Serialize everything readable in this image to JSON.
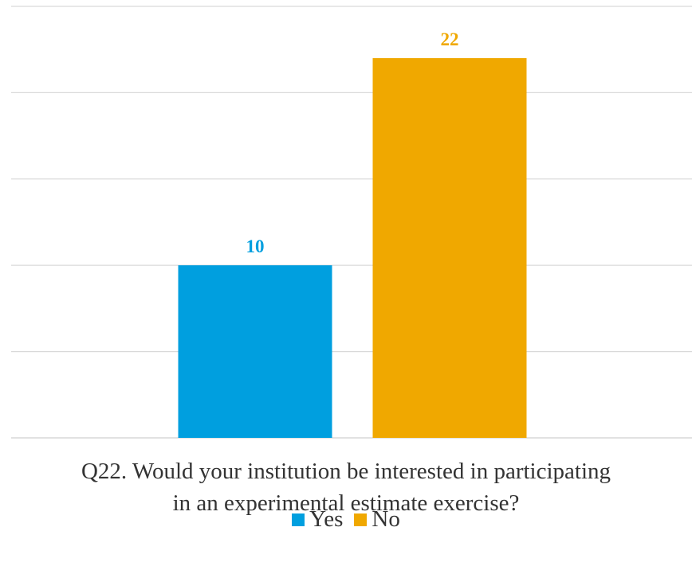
{
  "chart_data": {
    "type": "bar",
    "categories": [
      ""
    ],
    "series": [
      {
        "name": "Yes",
        "values": [
          10
        ],
        "color": "#009FDF"
      },
      {
        "name": "No",
        "values": [
          22
        ],
        "color": "#F0A800"
      }
    ],
    "title": "Q22. Would your institution be interested in participating in an experimental estimate exercise?",
    "xlabel": "",
    "ylabel": "",
    "ylim": [
      0,
      25
    ],
    "grid": true,
    "legend_position": "bottom",
    "data_labels": true
  },
  "caption": {
    "line1": "Q22. Would your institution be interested in participating",
    "line2": "in an experimental estimate exercise?"
  },
  "legend": {
    "items": [
      {
        "label": "Yes",
        "color": "#009FDF"
      },
      {
        "label": "No",
        "color": "#F0A800"
      }
    ]
  }
}
